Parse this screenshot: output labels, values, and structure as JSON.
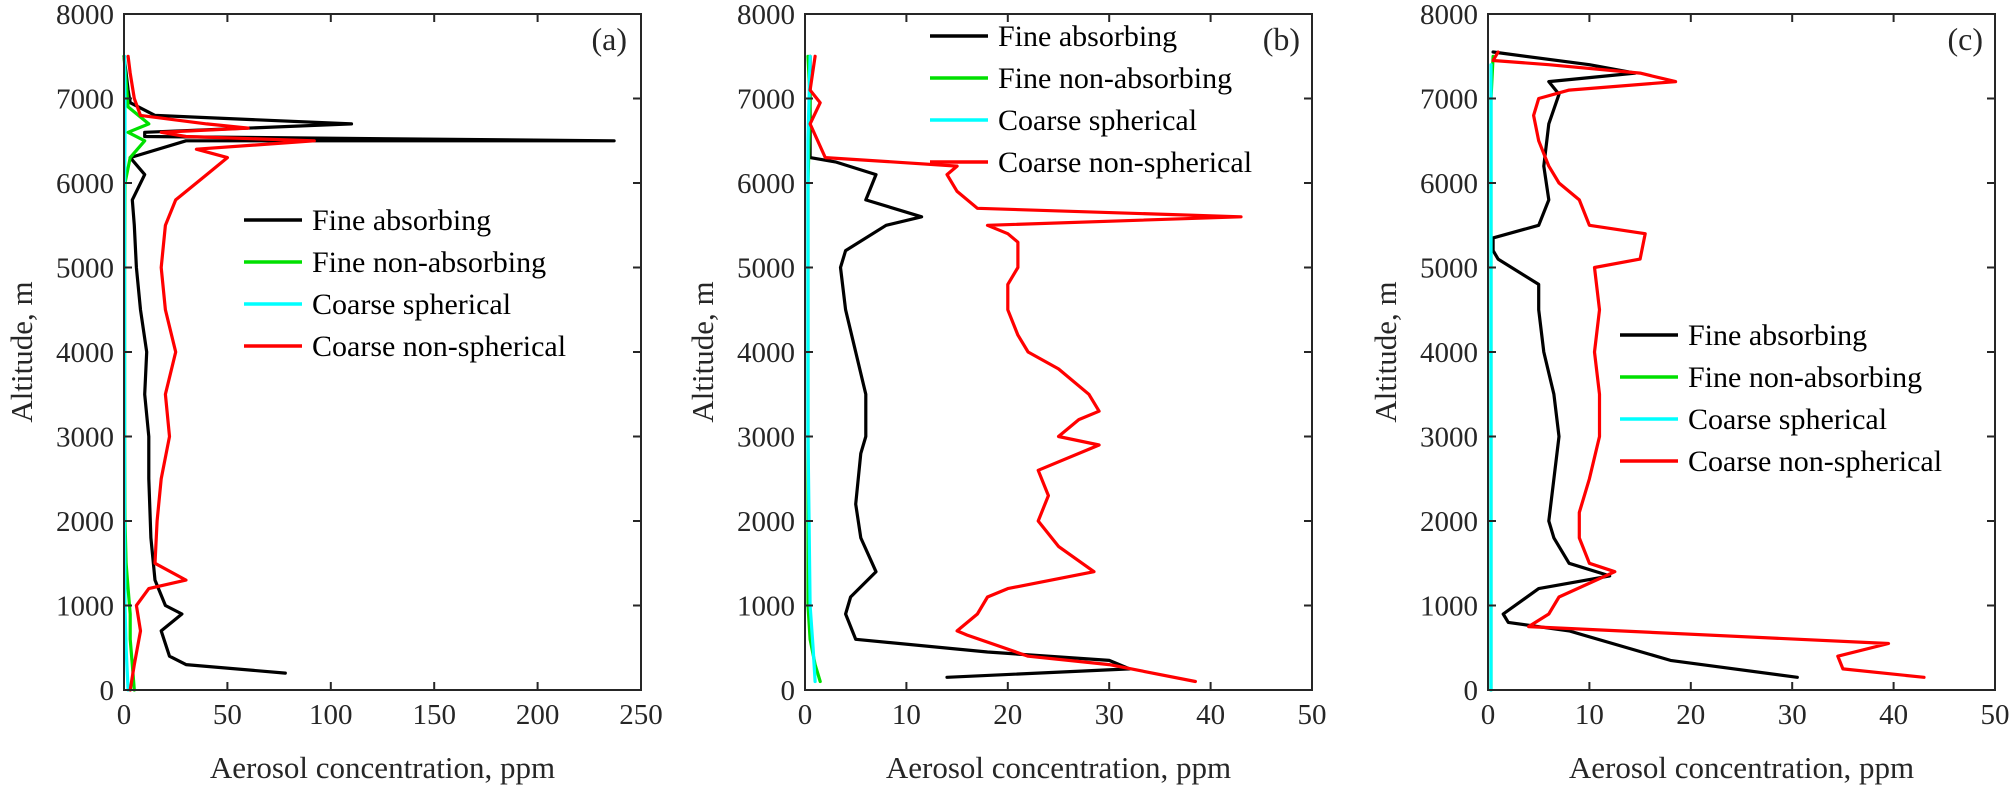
{
  "colors": {
    "fine_absorbing": "#000000",
    "fine_non_absorbing": "#00e000",
    "coarse_spherical": "#00ffff",
    "coarse_non_spherical": "#ff0000",
    "axis": "#262626",
    "background": "#ffffff"
  },
  "chart_data": [
    {
      "type": "line",
      "panel_label": "(a)",
      "xlabel": "Aerosol concentration, ppm",
      "ylabel": "Altitude, m",
      "xlim": [
        0,
        250
      ],
      "ylim": [
        0,
        8000
      ],
      "xticks": [
        "0",
        "50",
        "100",
        "150",
        "200",
        "250"
      ],
      "yticks": [
        "0",
        "1000",
        "2000",
        "3000",
        "4000",
        "5000",
        "6000",
        "7000",
        "8000"
      ],
      "grid": false,
      "legend_position": "center-right",
      "series": [
        {
          "name": "Fine absorbing",
          "points": [
            [
              78,
              200
            ],
            [
              30,
              300
            ],
            [
              22,
              400
            ],
            [
              18,
              700
            ],
            [
              28,
              900
            ],
            [
              20,
              1000
            ],
            [
              15,
              1300
            ],
            [
              13,
              1800
            ],
            [
              12,
              2500
            ],
            [
              12,
              3000
            ],
            [
              10,
              3500
            ],
            [
              11,
              4000
            ],
            [
              8,
              4500
            ],
            [
              6,
              5000
            ],
            [
              5,
              5500
            ],
            [
              4,
              5800
            ],
            [
              10,
              6100
            ],
            [
              3,
              6300
            ],
            [
              30,
              6500
            ],
            [
              237,
              6500
            ],
            [
              10,
              6550
            ],
            [
              10,
              6600
            ],
            [
              110,
              6700
            ],
            [
              15,
              6800
            ],
            [
              3,
              6950
            ],
            [
              2,
              7100
            ],
            [
              1,
              7300
            ],
            [
              0,
              7500
            ]
          ]
        },
        {
          "name": "Fine non-absorbing",
          "points": [
            [
              5,
              0
            ],
            [
              4,
              300
            ],
            [
              3,
              600
            ],
            [
              3,
              900
            ],
            [
              2,
              1200
            ],
            [
              1,
              1500
            ],
            [
              0.5,
              2000
            ],
            [
              0.3,
              3000
            ],
            [
              0.3,
              4000
            ],
            [
              0.3,
              5000
            ],
            [
              0.5,
              6000
            ],
            [
              3,
              6300
            ],
            [
              10,
              6500
            ],
            [
              2,
              6600
            ],
            [
              12,
              6700
            ],
            [
              2,
              6900
            ],
            [
              1,
              7200
            ],
            [
              0,
              7500
            ]
          ]
        },
        {
          "name": "Coarse spherical",
          "points": [
            [
              2,
              0
            ],
            [
              1,
              500
            ],
            [
              0.5,
              1000
            ],
            [
              0.3,
              2000
            ],
            [
              0.3,
              3000
            ],
            [
              0.3,
              4000
            ],
            [
              0.3,
              5000
            ],
            [
              0.3,
              6000
            ],
            [
              0.5,
              6500
            ],
            [
              0.5,
              7000
            ],
            [
              0.3,
              7500
            ]
          ]
        },
        {
          "name": "Coarse non-spherical",
          "points": [
            [
              3,
              0
            ],
            [
              5,
              300
            ],
            [
              8,
              700
            ],
            [
              6,
              1000
            ],
            [
              12,
              1200
            ],
            [
              30,
              1300
            ],
            [
              15,
              1500
            ],
            [
              16,
              2000
            ],
            [
              18,
              2500
            ],
            [
              22,
              3000
            ],
            [
              20,
              3500
            ],
            [
              25,
              4000
            ],
            [
              20,
              4500
            ],
            [
              18,
              5000
            ],
            [
              20,
              5500
            ],
            [
              25,
              5800
            ],
            [
              40,
              6100
            ],
            [
              50,
              6300
            ],
            [
              35,
              6400
            ],
            [
              92,
              6500
            ],
            [
              30,
              6550
            ],
            [
              18,
              6600
            ],
            [
              60,
              6650
            ],
            [
              40,
              6700
            ],
            [
              8,
              6800
            ],
            [
              5,
              7000
            ],
            [
              3,
              7300
            ],
            [
              2,
              7500
            ]
          ]
        }
      ]
    },
    {
      "type": "line",
      "panel_label": "(b)",
      "xlabel": "Aerosol concentration, ppm",
      "ylabel": "Altitude, m",
      "xlim": [
        0,
        50
      ],
      "ylim": [
        0,
        8000
      ],
      "xticks": [
        "0",
        "10",
        "20",
        "30",
        "40",
        "50"
      ],
      "yticks": [
        "0",
        "1000",
        "2000",
        "3000",
        "4000",
        "5000",
        "6000",
        "7000",
        "8000"
      ],
      "grid": false,
      "legend_position": "top-right",
      "series": [
        {
          "name": "Fine absorbing",
          "points": [
            [
              14,
              150
            ],
            [
              32,
              250
            ],
            [
              30,
              350
            ],
            [
              18,
              450
            ],
            [
              5,
              600
            ],
            [
              4,
              900
            ],
            [
              4.5,
              1100
            ],
            [
              7,
              1400
            ],
            [
              5.5,
              1800
            ],
            [
              5,
              2200
            ],
            [
              5.5,
              2800
            ],
            [
              6,
              3000
            ],
            [
              6,
              3500
            ],
            [
              5,
              4000
            ],
            [
              4,
              4500
            ],
            [
              3.5,
              5000
            ],
            [
              4,
              5200
            ],
            [
              8,
              5500
            ],
            [
              11.5,
              5600
            ],
            [
              6,
              5800
            ],
            [
              7,
              6100
            ],
            [
              3,
              6250
            ],
            [
              0.5,
              6300
            ],
            [
              0.5,
              7000
            ],
            [
              0.5,
              7500
            ]
          ]
        },
        {
          "name": "Fine non-absorbing",
          "points": [
            [
              1.5,
              100
            ],
            [
              1,
              300
            ],
            [
              0.5,
              600
            ],
            [
              0.3,
              1000
            ],
            [
              0.3,
              3000
            ],
            [
              0.3,
              5000
            ],
            [
              0.3,
              6000
            ],
            [
              0.5,
              7000
            ],
            [
              0.3,
              7500
            ]
          ]
        },
        {
          "name": "Coarse spherical",
          "points": [
            [
              1,
              100
            ],
            [
              0.8,
              500
            ],
            [
              0.5,
              1000
            ],
            [
              0.3,
              3000
            ],
            [
              0.3,
              5500
            ],
            [
              0.3,
              6500
            ],
            [
              0.5,
              7500
            ]
          ]
        },
        {
          "name": "Coarse non-spherical",
          "points": [
            [
              38.5,
              100
            ],
            [
              30,
              300
            ],
            [
              22,
              400
            ],
            [
              16,
              650
            ],
            [
              15,
              700
            ],
            [
              17,
              900
            ],
            [
              18,
              1100
            ],
            [
              20,
              1200
            ],
            [
              28.5,
              1400
            ],
            [
              25,
              1700
            ],
            [
              23,
              2000
            ],
            [
              24,
              2300
            ],
            [
              23,
              2600
            ],
            [
              29,
              2900
            ],
            [
              25,
              3000
            ],
            [
              27,
              3200
            ],
            [
              29,
              3300
            ],
            [
              28,
              3500
            ],
            [
              25,
              3800
            ],
            [
              22,
              4000
            ],
            [
              21,
              4200
            ],
            [
              20,
              4500
            ],
            [
              20,
              4800
            ],
            [
              21,
              5000
            ],
            [
              21,
              5300
            ],
            [
              20,
              5400
            ],
            [
              18,
              5500
            ],
            [
              43,
              5600
            ],
            [
              17,
              5700
            ],
            [
              15,
              5900
            ],
            [
              14,
              6100
            ],
            [
              15,
              6200
            ],
            [
              2,
              6300
            ],
            [
              0.5,
              6700
            ],
            [
              1.5,
              6950
            ],
            [
              0.5,
              7100
            ],
            [
              1,
              7500
            ]
          ]
        }
      ]
    },
    {
      "type": "line",
      "panel_label": "(c)",
      "xlabel": "Aerosol concentration, ppm",
      "ylabel": "Altitude, m",
      "xlim": [
        0,
        50
      ],
      "ylim": [
        0,
        8000
      ],
      "xticks": [
        "0",
        "10",
        "20",
        "30",
        "40",
        "50"
      ],
      "yticks": [
        "0",
        "1000",
        "2000",
        "3000",
        "4000",
        "5000",
        "6000",
        "7000",
        "8000"
      ],
      "grid": false,
      "legend_position": "center-right",
      "series": [
        {
          "name": "Fine absorbing",
          "points": [
            [
              30.5,
              150
            ],
            [
              18,
              350
            ],
            [
              8,
              700
            ],
            [
              2,
              800
            ],
            [
              1.5,
              900
            ],
            [
              5,
              1200
            ],
            [
              12,
              1350
            ],
            [
              8,
              1500
            ],
            [
              6.5,
              1800
            ],
            [
              6,
              2000
            ],
            [
              6.5,
              2500
            ],
            [
              7,
              3000
            ],
            [
              6.5,
              3500
            ],
            [
              5.5,
              4000
            ],
            [
              5,
              4500
            ],
            [
              5,
              4800
            ],
            [
              1,
              5100
            ],
            [
              0.5,
              5200
            ],
            [
              0.5,
              5350
            ],
            [
              5,
              5500
            ],
            [
              6,
              5800
            ],
            [
              5.5,
              6200
            ],
            [
              6,
              6700
            ],
            [
              7,
              7050
            ],
            [
              6,
              7200
            ],
            [
              14.5,
              7300
            ],
            [
              10,
              7400
            ],
            [
              0.5,
              7550
            ]
          ]
        },
        {
          "name": "Fine non-absorbing",
          "points": [
            [
              0.3,
              0
            ],
            [
              0.3,
              1000
            ],
            [
              0.3,
              3000
            ],
            [
              0.3,
              5000
            ],
            [
              0.3,
              7000
            ],
            [
              0.5,
              7500
            ]
          ]
        },
        {
          "name": "Coarse spherical",
          "points": [
            [
              0.3,
              0
            ],
            [
              0.3,
              2000
            ],
            [
              0.3,
              4000
            ],
            [
              0.3,
              6000
            ],
            [
              0.3,
              7400
            ]
          ]
        },
        {
          "name": "Coarse non-spherical",
          "points": [
            [
              43,
              150
            ],
            [
              35,
              250
            ],
            [
              34.5,
              400
            ],
            [
              39.5,
              550
            ],
            [
              4,
              750
            ],
            [
              6,
              900
            ],
            [
              7,
              1100
            ],
            [
              12.5,
              1400
            ],
            [
              10,
              1500
            ],
            [
              9,
              1800
            ],
            [
              9,
              2100
            ],
            [
              10,
              2500
            ],
            [
              11,
              3000
            ],
            [
              11,
              3500
            ],
            [
              10.5,
              4000
            ],
            [
              11,
              4500
            ],
            [
              10.5,
              5000
            ],
            [
              15,
              5100
            ],
            [
              15.5,
              5400
            ],
            [
              10,
              5500
            ],
            [
              9,
              5800
            ],
            [
              7,
              6000
            ],
            [
              6,
              6200
            ],
            [
              5,
              6500
            ],
            [
              4.5,
              6800
            ],
            [
              5,
              7000
            ],
            [
              8,
              7100
            ],
            [
              18.5,
              7200
            ],
            [
              15,
              7300
            ],
            [
              6,
              7400
            ],
            [
              0.5,
              7450
            ],
            [
              1,
              7550
            ]
          ]
        }
      ]
    }
  ]
}
